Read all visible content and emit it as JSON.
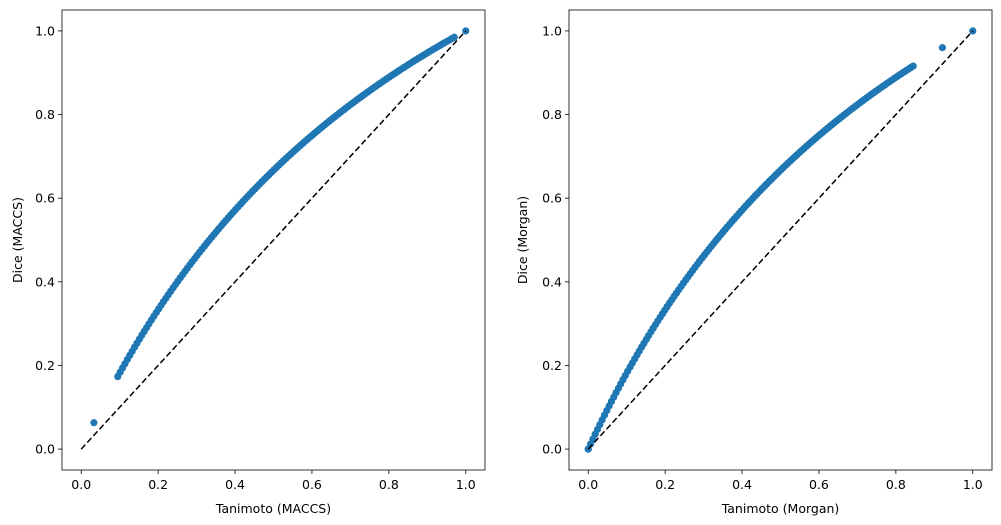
{
  "chart_data": [
    {
      "type": "scatter",
      "xlabel": "Tanimoto (MACCS)",
      "ylabel": "Dice (MACCS)",
      "xlim": [
        -0.05,
        1.05
      ],
      "ylim": [
        -0.05,
        1.05
      ],
      "xticks": [
        "0.0",
        "0.2",
        "0.4",
        "0.6",
        "0.8",
        "1.0"
      ],
      "yticks": [
        "0.0",
        "0.2",
        "0.4",
        "0.6",
        "0.8",
        "1.0"
      ],
      "grid": false,
      "relation": "y = 2x / (1 + x)",
      "x_min": 0.095,
      "x_max": 0.97,
      "extra_points": [
        [
          0.033,
          0.063
        ],
        [
          1.0,
          1.0
        ]
      ],
      "reference_line": {
        "style": "dashed",
        "color": "#000000",
        "x": [
          0,
          1
        ],
        "y": [
          0,
          1
        ]
      },
      "series_color": "#1f77b4"
    },
    {
      "type": "scatter",
      "xlabel": "Tanimoto (Morgan)",
      "ylabel": "Dice (Morgan)",
      "xlim": [
        -0.05,
        1.05
      ],
      "ylim": [
        -0.05,
        1.05
      ],
      "xticks": [
        "0.0",
        "0.2",
        "0.4",
        "0.6",
        "0.8",
        "1.0"
      ],
      "yticks": [
        "0.0",
        "0.2",
        "0.4",
        "0.6",
        "0.8",
        "1.0"
      ],
      "grid": false,
      "relation": "y = 2x / (1 + x)",
      "x_min": 0.0,
      "x_max": 0.845,
      "extra_points": [
        [
          0.0,
          0.0
        ],
        [
          0.921,
          0.96
        ],
        [
          1.0,
          1.0
        ]
      ],
      "reference_line": {
        "style": "dashed",
        "color": "#000000",
        "x": [
          0,
          1
        ],
        "y": [
          0,
          1
        ]
      },
      "series_color": "#1f77b4"
    }
  ]
}
